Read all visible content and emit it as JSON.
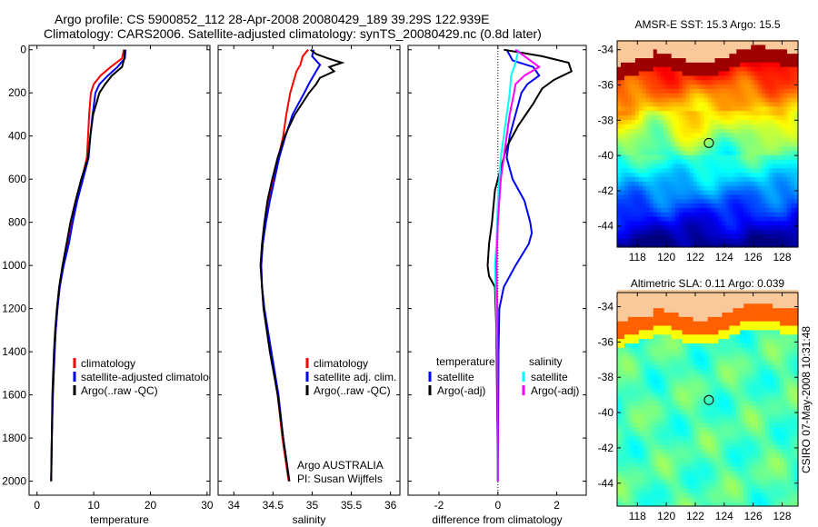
{
  "title_line1": "Argo profile: CS 5900852_112 28-Apr-2008 20080429_189 39.29S 122.939E",
  "title_line2": "Climatology: CARS2006. Satellite-adjusted climatology: synTS_20080429.nc (0.8d later)",
  "footer": "CSIRO 07-May-2008 10:31:48",
  "colors": {
    "climatology": "#ff0000",
    "satellite": "#0000ff",
    "argo": "#000000",
    "sal_satellite": "#00ffff",
    "sal_argo": "#ff00ff",
    "land": "#f9c89b"
  },
  "chart_data": [
    {
      "type": "line",
      "xlabel": "temperature",
      "ylabel": "",
      "xlim": [
        -1.4,
        30.5
      ],
      "ylim": [
        2065,
        -20
      ],
      "xticks": [
        0,
        10,
        20,
        30
      ],
      "yticks": [
        0,
        200,
        400,
        600,
        800,
        1000,
        1200,
        1400,
        1600,
        1800,
        2000
      ],
      "legend": [
        "climatology",
        "satellite-adjusted climatology",
        "Argo(..raw -QC)"
      ],
      "series": [
        {
          "name": "climatology",
          "color": "#ff0000",
          "points": [
            [
              0,
              15.3
            ],
            [
              40,
              15
            ],
            [
              80,
              13
            ],
            [
              120,
              11.2
            ],
            [
              160,
              10
            ],
            [
              200,
              9.5
            ],
            [
              300,
              9.2
            ],
            [
              400,
              9
            ],
            [
              500,
              8.8
            ],
            [
              600,
              7.9
            ],
            [
              700,
              7
            ],
            [
              800,
              6.2
            ],
            [
              900,
              5.5
            ],
            [
              1000,
              4.6
            ],
            [
              1100,
              4
            ],
            [
              1200,
              3.6
            ],
            [
              1300,
              3.3
            ],
            [
              1400,
              3.1
            ],
            [
              1600,
              2.8
            ],
            [
              1800,
              2.6
            ],
            [
              2000,
              2.5
            ]
          ]
        },
        {
          "name": "satellite-adjusted climatology",
          "color": "#0000ff",
          "points": [
            [
              0,
              15.6
            ],
            [
              40,
              15.5
            ],
            [
              80,
              14.2
            ],
            [
              120,
              12.5
            ],
            [
              160,
              11
            ],
            [
              200,
              10.3
            ],
            [
              300,
              9.8
            ],
            [
              400,
              9.4
            ],
            [
              500,
              9.1
            ],
            [
              600,
              8.1
            ],
            [
              700,
              7.1
            ],
            [
              800,
              6.3
            ],
            [
              900,
              5.6
            ],
            [
              1000,
              4.7
            ],
            [
              1100,
              4
            ],
            [
              1200,
              3.6
            ],
            [
              1300,
              3.3
            ],
            [
              1400,
              3.1
            ],
            [
              1600,
              2.8
            ],
            [
              1800,
              2.6
            ],
            [
              2000,
              2.5
            ]
          ]
        },
        {
          "name": "Argo(..raw -QC)",
          "color": "#000000",
          "points": [
            [
              0,
              15.5
            ],
            [
              40,
              15.4
            ],
            [
              80,
              15
            ],
            [
              120,
              13.2
            ],
            [
              160,
              12
            ],
            [
              200,
              11
            ],
            [
              300,
              9.9
            ],
            [
              400,
              9.4
            ],
            [
              500,
              9
            ],
            [
              600,
              7.8
            ],
            [
              700,
              6.8
            ],
            [
              800,
              5.9
            ],
            [
              900,
              5.2
            ],
            [
              1000,
              4.5
            ],
            [
              1100,
              3.9
            ],
            [
              1200,
              3.5
            ],
            [
              1300,
              3.2
            ],
            [
              1400,
              3
            ],
            [
              1600,
              2.7
            ],
            [
              1800,
              2.6
            ],
            [
              2000,
              2.5
            ]
          ]
        }
      ]
    },
    {
      "type": "line",
      "xlabel": "salinity",
      "xlim": [
        33.8,
        36.12
      ],
      "ylim": [
        2065,
        -20
      ],
      "xticks": [
        34,
        34.5,
        35,
        35.5,
        36
      ],
      "legend": [
        "climatology",
        "satellite adj. clim.",
        "Argo(..raw -QC)"
      ],
      "annotations": [
        "Argo AUSTRALIA",
        "PI: Susan Wijffels"
      ],
      "series": [
        {
          "name": "climatology",
          "color": "#ff0000",
          "points": [
            [
              0,
              34.95
            ],
            [
              30,
              34.88
            ],
            [
              70,
              34.85
            ],
            [
              100,
              34.8
            ],
            [
              150,
              34.76
            ],
            [
              200,
              34.72
            ],
            [
              300,
              34.67
            ],
            [
              400,
              34.63
            ],
            [
              500,
              34.57
            ],
            [
              600,
              34.51
            ],
            [
              700,
              34.45
            ],
            [
              800,
              34.4
            ],
            [
              900,
              34.37
            ],
            [
              1000,
              34.35
            ],
            [
              1100,
              34.36
            ],
            [
              1200,
              34.38
            ],
            [
              1400,
              34.47
            ],
            [
              1600,
              34.56
            ],
            [
              1800,
              34.62
            ],
            [
              2000,
              34.7
            ]
          ]
        },
        {
          "name": "satellite adj. clim.",
          "color": "#0000ff",
          "points": [
            [
              0,
              35.02
            ],
            [
              30,
              35.0
            ],
            [
              70,
              35.1
            ],
            [
              100,
              35.05
            ],
            [
              150,
              34.97
            ],
            [
              200,
              34.9
            ],
            [
              300,
              34.75
            ],
            [
              400,
              34.66
            ],
            [
              500,
              34.58
            ],
            [
              600,
              34.52
            ],
            [
              700,
              34.46
            ],
            [
              800,
              34.41
            ],
            [
              900,
              34.37
            ],
            [
              1000,
              34.35
            ],
            [
              1100,
              34.36
            ],
            [
              1200,
              34.39
            ],
            [
              1400,
              34.48
            ],
            [
              1600,
              34.57
            ],
            [
              1800,
              34.63
            ],
            [
              2000,
              34.71
            ]
          ]
        },
        {
          "name": "Argo(..raw -QC)",
          "color": "#000000",
          "points": [
            [
              0,
              34.98
            ],
            [
              20,
              35.05
            ],
            [
              40,
              35.2
            ],
            [
              60,
              35.38
            ],
            [
              80,
              35.22
            ],
            [
              100,
              35.28
            ],
            [
              130,
              35.1
            ],
            [
              160,
              35.05
            ],
            [
              200,
              34.96
            ],
            [
              300,
              34.78
            ],
            [
              400,
              34.65
            ],
            [
              500,
              34.56
            ],
            [
              600,
              34.49
            ],
            [
              700,
              34.43
            ],
            [
              800,
              34.39
            ],
            [
              900,
              34.36
            ],
            [
              1000,
              34.34
            ],
            [
              1100,
              34.36
            ],
            [
              1200,
              34.38
            ],
            [
              1400,
              34.46
            ],
            [
              1600,
              34.56
            ],
            [
              1800,
              34.63
            ],
            [
              2000,
              34.71
            ]
          ]
        }
      ]
    },
    {
      "type": "line",
      "xlabel": "difference from climatology",
      "xlim": [
        -3.05,
        3.0
      ],
      "ylim": [
        2065,
        -20
      ],
      "xticks": [
        -2,
        0,
        2
      ],
      "legend_headers": [
        "temperature",
        "salinity"
      ],
      "legend": [
        "satellite",
        "Argo(-adj)",
        "satellite",
        "Argo(-adj)"
      ],
      "series": [
        {
          "name": "temperature satellite",
          "color": "#0000ff",
          "points": [
            [
              0,
              0.3
            ],
            [
              50,
              0.5
            ],
            [
              80,
              1.2
            ],
            [
              120,
              1.4
            ],
            [
              160,
              1.0
            ],
            [
              200,
              0.8
            ],
            [
              300,
              0.6
            ],
            [
              400,
              0.4
            ],
            [
              500,
              0.3
            ],
            [
              600,
              0.5
            ],
            [
              700,
              0.9
            ],
            [
              800,
              1.1
            ],
            [
              850,
              1.15
            ],
            [
              900,
              1.05
            ],
            [
              1000,
              0.6
            ],
            [
              1100,
              0.2
            ],
            [
              1200,
              0.05
            ],
            [
              1400,
              0.02
            ],
            [
              2000,
              0
            ]
          ]
        },
        {
          "name": "temperature Argo(-adj)",
          "color": "#000000",
          "points": [
            [
              0,
              0.2
            ],
            [
              30,
              1.5
            ],
            [
              60,
              2.4
            ],
            [
              100,
              2.5
            ],
            [
              140,
              1.9
            ],
            [
              180,
              1.5
            ],
            [
              250,
              1.2
            ],
            [
              350,
              0.7
            ],
            [
              450,
              0.3
            ],
            [
              550,
              0.1
            ],
            [
              650,
              -0.1
            ],
            [
              800,
              -0.2
            ],
            [
              900,
              -0.3
            ],
            [
              1000,
              -0.35
            ],
            [
              1050,
              -0.3
            ],
            [
              1100,
              -0.1
            ],
            [
              1300,
              -0.05
            ],
            [
              2000,
              0
            ]
          ]
        },
        {
          "name": "salinity satellite",
          "color": "#00ffff",
          "points": [
            [
              0,
              0.7
            ],
            [
              60,
              0.6
            ],
            [
              120,
              0.45
            ],
            [
              200,
              0.4
            ],
            [
              300,
              0.3
            ],
            [
              400,
              0.2
            ],
            [
              500,
              0.1
            ],
            [
              600,
              0.05
            ],
            [
              700,
              0
            ],
            [
              900,
              -0.05
            ],
            [
              1000,
              -0.1
            ],
            [
              1200,
              -0.05
            ],
            [
              1400,
              -0.02
            ],
            [
              2000,
              0
            ]
          ]
        },
        {
          "name": "salinity Argo(-adj)",
          "color": "#ff00ff",
          "points": [
            [
              0,
              0.6
            ],
            [
              40,
              1.0
            ],
            [
              80,
              1.4
            ],
            [
              120,
              0.9
            ],
            [
              160,
              0.6
            ],
            [
              200,
              0.55
            ],
            [
              300,
              0.4
            ],
            [
              400,
              0.3
            ],
            [
              500,
              0.2
            ],
            [
              600,
              0.1
            ],
            [
              800,
              0
            ],
            [
              1000,
              -0.05
            ],
            [
              1200,
              -0.02
            ],
            [
              2000,
              0
            ]
          ]
        }
      ]
    },
    {
      "type": "heatmap",
      "title": "AMSR-E SST: 15.3 Argo: 15.5",
      "xlim": [
        116.6,
        129.1
      ],
      "ylim": [
        -45.2,
        -33.5
      ],
      "xticks": [
        118,
        120,
        122,
        124,
        126,
        128
      ],
      "yticks": [
        -34,
        -36,
        -38,
        -40,
        -42,
        -44
      ],
      "marker": {
        "lon": 122.939,
        "lat": -39.29
      }
    },
    {
      "type": "heatmap",
      "title": "Altimetric SLA: 0.11 Argo: 0.039",
      "xlim": [
        116.6,
        129.1
      ],
      "ylim": [
        -45.3,
        -33.2
      ],
      "xticks": [
        118,
        120,
        122,
        124,
        126,
        128
      ],
      "yticks": [
        -34,
        -36,
        -38,
        -40,
        -42,
        -44
      ],
      "marker": {
        "lon": 122.939,
        "lat": -39.29
      }
    }
  ]
}
